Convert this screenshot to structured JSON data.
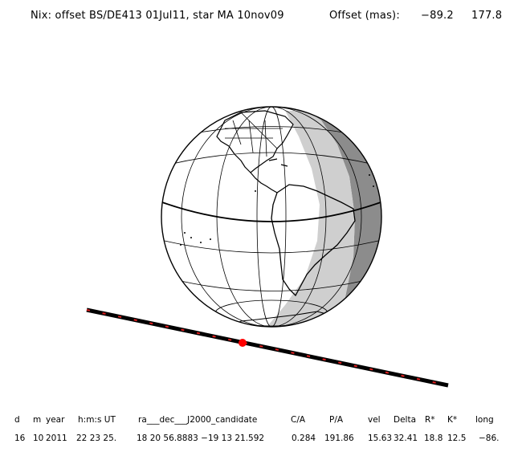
{
  "header": {
    "title": "Nix: offset BS/DE413 01Jul11, star MA 10nov09",
    "offset_label": "Offset (mas):",
    "offset_ra": "−89.2",
    "offset_dec": "177.8"
  },
  "table": {
    "columns": [
      "d",
      "m",
      "year",
      "h:m:s UT",
      "ra___dec___J2000_candidate",
      "C/A",
      "P/A",
      "vel",
      "Delta",
      "R*",
      "K*",
      "long"
    ],
    "values": [
      "16",
      "10",
      "2011",
      "22 23 25.",
      "18 20 56.8883 −19 13  21.592",
      "0.284",
      "191.86",
      "15.63",
      "32.41",
      "18.8",
      "12.5",
      "−86."
    ]
  },
  "colors": {
    "shadow_dark": "#8c8c8c",
    "penumbra": "#cfcfcf",
    "track_marks": "#e02020",
    "event_point": "#ff0000"
  }
}
